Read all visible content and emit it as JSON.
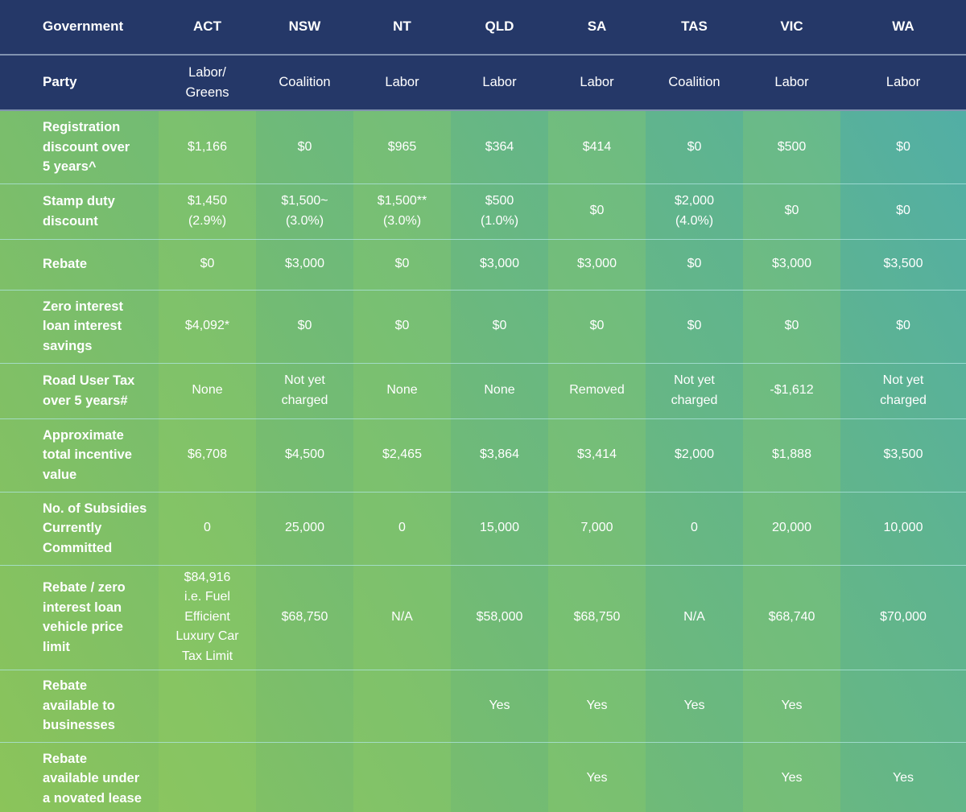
{
  "table": {
    "columns": [
      "Government",
      "ACT",
      "NSW",
      "NT",
      "QLD",
      "SA",
      "TAS",
      "VIC",
      "WA"
    ],
    "party": {
      "label": "Party",
      "values": [
        [
          "Labor/",
          "Greens"
        ],
        [
          "Coalition"
        ],
        [
          "Labor"
        ],
        [
          "Labor"
        ],
        [
          "Labor"
        ],
        [
          "Coalition"
        ],
        [
          "Labor"
        ],
        [
          "Labor"
        ]
      ]
    },
    "rows": [
      {
        "label": [
          "Registration",
          "discount over",
          "5 years^"
        ],
        "cells": [
          [
            "$1,166"
          ],
          [
            "$0"
          ],
          [
            "$965"
          ],
          [
            "$364"
          ],
          [
            "$414"
          ],
          [
            "$0"
          ],
          [
            "$500"
          ],
          [
            "$0"
          ]
        ]
      },
      {
        "label": [
          "Stamp duty",
          "discount"
        ],
        "cells": [
          [
            "$1,450",
            "(2.9%)"
          ],
          [
            "$1,500~",
            "(3.0%)"
          ],
          [
            "$1,500**",
            "(3.0%)"
          ],
          [
            "$500",
            "(1.0%)"
          ],
          [
            "$0"
          ],
          [
            "$2,000",
            "(4.0%)"
          ],
          [
            "$0"
          ],
          [
            "$0"
          ]
        ]
      },
      {
        "label": [
          "Rebate"
        ],
        "cells": [
          [
            "$0"
          ],
          [
            "$3,000"
          ],
          [
            "$0"
          ],
          [
            "$3,000"
          ],
          [
            "$3,000"
          ],
          [
            "$0"
          ],
          [
            "$3,000"
          ],
          [
            "$3,500"
          ]
        ]
      },
      {
        "label": [
          "Zero interest",
          "loan interest",
          "savings"
        ],
        "cells": [
          [
            "$4,092*"
          ],
          [
            "$0"
          ],
          [
            "$0"
          ],
          [
            "$0"
          ],
          [
            "$0"
          ],
          [
            "$0"
          ],
          [
            "$0"
          ],
          [
            "$0"
          ]
        ]
      },
      {
        "label": [
          "Road User Tax",
          "over 5 years#"
        ],
        "cells": [
          [
            "None"
          ],
          [
            "Not yet",
            "charged"
          ],
          [
            "None"
          ],
          [
            "None"
          ],
          [
            "Removed"
          ],
          [
            "Not yet",
            "charged"
          ],
          [
            "-$1,612"
          ],
          [
            "Not yet",
            "charged"
          ]
        ]
      },
      {
        "label": [
          "Approximate",
          "total incentive",
          "value"
        ],
        "cells": [
          [
            "$6,708"
          ],
          [
            "$4,500"
          ],
          [
            "$2,465"
          ],
          [
            "$3,864"
          ],
          [
            "$3,414"
          ],
          [
            "$2,000"
          ],
          [
            "$1,888"
          ],
          [
            "$3,500"
          ]
        ]
      },
      {
        "label": [
          "No. of Subsidies",
          "Currently",
          "Committed"
        ],
        "cells": [
          [
            "0"
          ],
          [
            "25,000"
          ],
          [
            "0"
          ],
          [
            "15,000"
          ],
          [
            "7,000"
          ],
          [
            "0"
          ],
          [
            "20,000"
          ],
          [
            "10,000"
          ]
        ]
      },
      {
        "label": [
          "Rebate / zero",
          "interest loan",
          "vehicle price",
          "limit"
        ],
        "cells": [
          [
            "$84,916",
            "i.e. Fuel",
            "Efficient",
            "Luxury Car",
            "Tax Limit"
          ],
          [
            "$68,750"
          ],
          [
            "N/A"
          ],
          [
            "$58,000"
          ],
          [
            "$68,750"
          ],
          [
            "N/A"
          ],
          [
            "$68,740"
          ],
          [
            "$70,000"
          ]
        ]
      },
      {
        "label": [
          "Rebate",
          "available to",
          "businesses"
        ],
        "cells": [
          [],
          [],
          [],
          [
            "Yes"
          ],
          [
            "Yes"
          ],
          [
            "Yes"
          ],
          [
            "Yes"
          ],
          []
        ]
      },
      {
        "label": [
          "Rebate",
          "available under",
          "a novated lease"
        ],
        "cells": [
          [],
          [],
          [],
          [],
          [
            "Yes"
          ],
          [],
          [
            "Yes"
          ],
          [
            "Yes"
          ]
        ]
      }
    ]
  },
  "colors": {
    "header_bg": "#253868",
    "text": "#ffffff",
    "gradient_start": "#8bc45a",
    "gradient_end": "#4fadaa"
  }
}
